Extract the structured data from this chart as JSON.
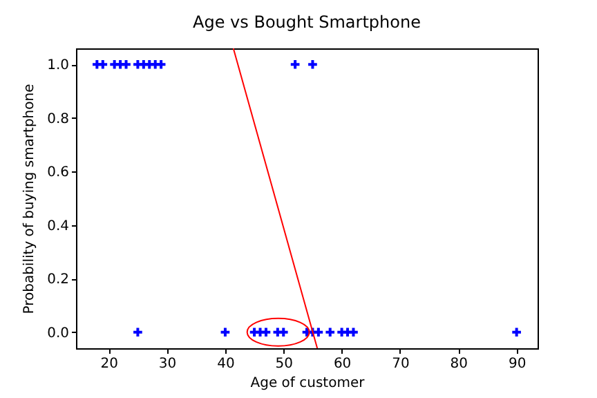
{
  "chart_data": {
    "type": "scatter",
    "title": "Age vs Bought Smartphone",
    "xlabel": "Age of customer",
    "ylabel": "Probability of buying smartphone",
    "series": [
      {
        "color": "#0000ff",
        "marker": "cross",
        "x": [
          18,
          19,
          21,
          22,
          23,
          25,
          26,
          27,
          28,
          29,
          52,
          55,
          25,
          40,
          45,
          46,
          47,
          49,
          50,
          54,
          55,
          56,
          58,
          60,
          61,
          62,
          90
        ],
        "values": [
          1,
          1,
          1,
          1,
          1,
          1,
          1,
          1,
          1,
          1,
          1,
          1,
          0,
          0,
          0,
          0,
          0,
          0,
          0,
          0,
          0,
          0,
          0,
          0,
          0,
          0,
          0
        ]
      },
      {
        "type": "line",
        "color": "#ff0000",
        "marker": "none",
        "x": [
          41.4,
          55.8
        ],
        "values": [
          1.06,
          -0.06
        ]
      }
    ],
    "xlim": [
      14.4,
      93.6
    ],
    "xticks": [
      20,
      30,
      40,
      50,
      60,
      70,
      80,
      90
    ],
    "ylim": [
      -0.06,
      1.06
    ],
    "yticks": [
      {
        "value": 0,
        "label": "0.0"
      },
      {
        "value": 0.2,
        "label": "0.2"
      },
      {
        "value": 0.4,
        "label": "0.4"
      },
      {
        "value": 0.6,
        "label": "0.6"
      },
      {
        "value": 0.8,
        "label": "0.8"
      },
      {
        "value": 1,
        "label": "1.0"
      }
    ],
    "grid": false
  }
}
